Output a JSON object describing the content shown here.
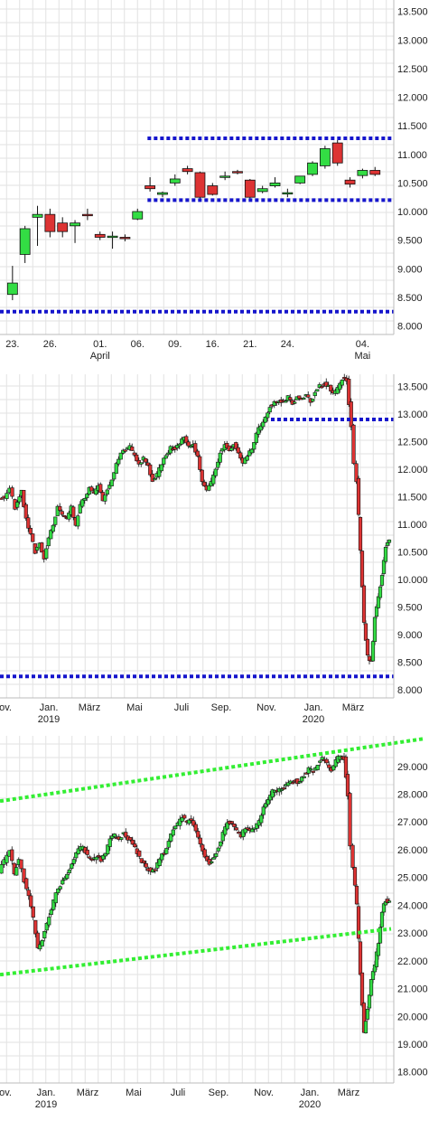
{
  "colors": {
    "up": "#33dd44",
    "down": "#dd3333",
    "blue_line": "#1515cc",
    "green_line": "#33ee33",
    "grid": "#e2e2e2"
  },
  "chart_data": [
    {
      "type": "candlestick",
      "ylim": [
        7850,
        13700
      ],
      "yticks": [
        "13.500",
        "13.000",
        "12.500",
        "12.000",
        "11.500",
        "11.000",
        "10.500",
        "10.000",
        "9.500",
        "9.000",
        "8.500",
        "8.000"
      ],
      "ytick_values": [
        13500,
        13000,
        12500,
        12000,
        11500,
        11000,
        10500,
        10000,
        9500,
        9000,
        8500,
        8000
      ],
      "xticks": [
        {
          "label": "23.",
          "sub": "",
          "i": 0
        },
        {
          "label": "26.",
          "sub": "",
          "i": 3
        },
        {
          "label": "01.",
          "sub": "April",
          "i": 7
        },
        {
          "label": "06.",
          "sub": "",
          "i": 10
        },
        {
          "label": "09.",
          "sub": "",
          "i": 13
        },
        {
          "label": "16.",
          "sub": "",
          "i": 16
        },
        {
          "label": "21.",
          "sub": "",
          "i": 19
        },
        {
          "label": "24.",
          "sub": "",
          "i": 22
        },
        {
          "label": "04.",
          "sub": "Mai",
          "i": 28
        }
      ],
      "x_start": -1,
      "x_end": 30.5,
      "candles": [
        {
          "o": 8550,
          "h": 9050,
          "l": 8450,
          "c": 8750
        },
        {
          "o": 9250,
          "h": 9750,
          "l": 9100,
          "c": 9700
        },
        {
          "o": 9900,
          "h": 10100,
          "l": 9400,
          "c": 9950
        },
        {
          "o": 9950,
          "h": 10050,
          "l": 9550,
          "c": 9650
        },
        {
          "o": 9800,
          "h": 9900,
          "l": 9550,
          "c": 9650
        },
        {
          "o": 9750,
          "h": 9850,
          "l": 9450,
          "c": 9800
        },
        {
          "o": 9950,
          "h": 10050,
          "l": 9850,
          "c": 9930
        },
        {
          "o": 9600,
          "h": 9650,
          "l": 9500,
          "c": 9550
        },
        {
          "o": 9550,
          "h": 9650,
          "l": 9350,
          "c": 9570
        },
        {
          "o": 9550,
          "h": 9600,
          "l": 9480,
          "c": 9530
        },
        {
          "o": 9870,
          "h": 10050,
          "l": 9850,
          "c": 10000
        },
        {
          "o": 10450,
          "h": 10600,
          "l": 10350,
          "c": 10400
        },
        {
          "o": 10300,
          "h": 10350,
          "l": 10250,
          "c": 10330
        },
        {
          "o": 10500,
          "h": 10650,
          "l": 10450,
          "c": 10570
        },
        {
          "o": 10750,
          "h": 10800,
          "l": 10650,
          "c": 10700
        },
        {
          "o": 10680,
          "h": 10700,
          "l": 10200,
          "c": 10250
        },
        {
          "o": 10450,
          "h": 10500,
          "l": 10280,
          "c": 10300
        },
        {
          "o": 10600,
          "h": 10700,
          "l": 10550,
          "c": 10620
        },
        {
          "o": 10700,
          "h": 10730,
          "l": 10650,
          "c": 10680
        },
        {
          "o": 10550,
          "h": 10570,
          "l": 10200,
          "c": 10250
        },
        {
          "o": 10350,
          "h": 10450,
          "l": 10320,
          "c": 10400
        },
        {
          "o": 10450,
          "h": 10600,
          "l": 10420,
          "c": 10500
        },
        {
          "o": 10320,
          "h": 10400,
          "l": 10250,
          "c": 10330
        },
        {
          "o": 10500,
          "h": 10600,
          "l": 10480,
          "c": 10620
        },
        {
          "o": 10650,
          "h": 10880,
          "l": 10620,
          "c": 10850
        },
        {
          "o": 10800,
          "h": 11150,
          "l": 10750,
          "c": 11100
        },
        {
          "o": 11200,
          "h": 11250,
          "l": 10800,
          "c": 10850
        },
        {
          "o": 10550,
          "h": 10600,
          "l": 10420,
          "c": 10480
        },
        {
          "o": 10630,
          "h": 10750,
          "l": 10580,
          "c": 10720
        },
        {
          "o": 10720,
          "h": 10780,
          "l": 10620,
          "c": 10650
        }
      ],
      "hlines": [
        {
          "value": 11280,
          "from": 10.8,
          "to": 30.5,
          "color": "blue"
        },
        {
          "value": 10200,
          "from": 10.8,
          "to": 30.5,
          "color": "blue"
        },
        {
          "value": 8250,
          "from": -1,
          "to": 30.5,
          "color": "blue"
        }
      ]
    },
    {
      "type": "candlestick",
      "ylim": [
        7850,
        13720
      ],
      "yticks": [
        "13.500",
        "13.000",
        "12.500",
        "12.000",
        "11.500",
        "11.000",
        "10.500",
        "10.000",
        "9.500",
        "9.000",
        "8.500",
        "8.000"
      ],
      "ytick_values": [
        13500,
        13000,
        12500,
        12000,
        11500,
        11000,
        10500,
        10000,
        9500,
        9000,
        8500,
        8000
      ],
      "xticks": [
        {
          "label": "ov.",
          "sub": "",
          "px": 6
        },
        {
          "label": "Jan.",
          "sub": "2019",
          "px": 54
        },
        {
          "label": "März",
          "sub": "",
          "px": 99
        },
        {
          "label": "Mai",
          "sub": "",
          "px": 149
        },
        {
          "label": "Juli",
          "sub": "",
          "px": 201
        },
        {
          "label": "Sep.",
          "sub": "",
          "px": 245
        },
        {
          "label": "Nov.",
          "sub": "",
          "px": 295
        },
        {
          "label": "Jan.",
          "sub": "2020",
          "px": 347
        },
        {
          "label": "März",
          "sub": "",
          "px": 391
        }
      ],
      "pts": [
        [
          0,
          11500
        ],
        [
          6,
          11450
        ],
        [
          12,
          11650
        ],
        [
          18,
          11300
        ],
        [
          25,
          11600
        ],
        [
          30,
          11100
        ],
        [
          35,
          10800
        ],
        [
          40,
          10500
        ],
        [
          45,
          10650
        ],
        [
          50,
          10400
        ],
        [
          55,
          10750
        ],
        [
          60,
          11000
        ],
        [
          65,
          11300
        ],
        [
          70,
          11150
        ],
        [
          75,
          11100
        ],
        [
          80,
          11300
        ],
        [
          85,
          11000
        ],
        [
          90,
          11350
        ],
        [
          95,
          11500
        ],
        [
          100,
          11650
        ],
        [
          105,
          11550
        ],
        [
          110,
          11700
        ],
        [
          115,
          11400
        ],
        [
          120,
          11650
        ],
        [
          125,
          11800
        ],
        [
          130,
          12100
        ],
        [
          135,
          12300
        ],
        [
          140,
          12350
        ],
        [
          145,
          12400
        ],
        [
          150,
          12250
        ],
        [
          155,
          12100
        ],
        [
          160,
          12200
        ],
        [
          165,
          12050
        ],
        [
          170,
          11800
        ],
        [
          175,
          11900
        ],
        [
          180,
          12100
        ],
        [
          185,
          12250
        ],
        [
          190,
          12400
        ],
        [
          195,
          12350
        ],
        [
          200,
          12450
        ],
        [
          205,
          12600
        ],
        [
          210,
          12400
        ],
        [
          215,
          12450
        ],
        [
          220,
          12200
        ],
        [
          225,
          11800
        ],
        [
          230,
          11600
        ],
        [
          235,
          11750
        ],
        [
          240,
          12000
        ],
        [
          245,
          12300
        ],
        [
          250,
          12450
        ],
        [
          255,
          12350
        ],
        [
          260,
          12450
        ],
        [
          265,
          12300
        ],
        [
          270,
          12100
        ],
        [
          275,
          12250
        ],
        [
          280,
          12350
        ],
        [
          285,
          12650
        ],
        [
          290,
          12800
        ],
        [
          295,
          12950
        ],
        [
          300,
          13150
        ],
        [
          305,
          13200
        ],
        [
          310,
          13250
        ],
        [
          315,
          13200
        ],
        [
          320,
          13300
        ],
        [
          325,
          13200
        ],
        [
          330,
          13300
        ],
        [
          335,
          13250
        ],
        [
          340,
          13350
        ],
        [
          345,
          13200
        ],
        [
          350,
          13400
        ],
        [
          355,
          13500
        ],
        [
          360,
          13550
        ],
        [
          365,
          13500
        ],
        [
          370,
          13350
        ],
        [
          375,
          13450
        ],
        [
          380,
          13650
        ],
        [
          385,
          13600
        ],
        [
          390,
          12800
        ],
        [
          393,
          12100
        ],
        [
          396,
          11800
        ],
        [
          400,
          10500
        ],
        [
          404,
          9200
        ],
        [
          408,
          8600
        ],
        [
          412,
          8500
        ],
        [
          416,
          9300
        ],
        [
          420,
          9700
        ],
        [
          424,
          10100
        ],
        [
          428,
          10600
        ],
        [
          432,
          10700
        ]
      ],
      "hlines": [
        {
          "value": 12900,
          "fromPx": 300,
          "toPx": 436,
          "color": "blue"
        },
        {
          "value": 8240,
          "fromPx": 0,
          "toPx": 436,
          "color": "blue"
        }
      ]
    },
    {
      "type": "candlestick",
      "ylim": [
        17600,
        30100
      ],
      "yticks": [
        "29.000",
        "28.000",
        "27.000",
        "26.000",
        "25.000",
        "24.000",
        "23.000",
        "22.000",
        "21.000",
        "20.000",
        "19.000",
        "18.000"
      ],
      "ytick_values": [
        29000,
        28000,
        27000,
        26000,
        25000,
        24000,
        23000,
        22000,
        21000,
        20000,
        19000,
        18000
      ],
      "xticks": [
        {
          "label": "ov.",
          "sub": "",
          "px": 6
        },
        {
          "label": "Jan.",
          "sub": "2019",
          "px": 51
        },
        {
          "label": "März",
          "sub": "",
          "px": 97
        },
        {
          "label": "Mai",
          "sub": "",
          "px": 148
        },
        {
          "label": "Juli",
          "sub": "",
          "px": 197
        },
        {
          "label": "Sep.",
          "sub": "",
          "px": 242
        },
        {
          "label": "Nov.",
          "sub": "",
          "px": 292
        },
        {
          "label": "Jan.",
          "sub": "2020",
          "px": 343
        },
        {
          "label": "März",
          "sub": "",
          "px": 386
        }
      ],
      "pts": [
        [
          0,
          25200
        ],
        [
          6,
          25600
        ],
        [
          12,
          26000
        ],
        [
          17,
          25100
        ],
        [
          22,
          25700
        ],
        [
          28,
          24900
        ],
        [
          33,
          24300
        ],
        [
          38,
          23500
        ],
        [
          43,
          22400
        ],
        [
          48,
          22800
        ],
        [
          53,
          23300
        ],
        [
          58,
          23900
        ],
        [
          63,
          24400
        ],
        [
          68,
          24700
        ],
        [
          73,
          25000
        ],
        [
          78,
          25300
        ],
        [
          83,
          25700
        ],
        [
          88,
          26000
        ],
        [
          93,
          26100
        ],
        [
          98,
          25800
        ],
        [
          103,
          25600
        ],
        [
          108,
          25800
        ],
        [
          113,
          25600
        ],
        [
          118,
          25900
        ],
        [
          123,
          26400
        ],
        [
          128,
          26500
        ],
        [
          133,
          26400
        ],
        [
          138,
          26600
        ],
        [
          143,
          26400
        ],
        [
          148,
          26200
        ],
        [
          153,
          25900
        ],
        [
          158,
          25600
        ],
        [
          163,
          25400
        ],
        [
          168,
          25200
        ],
        [
          173,
          25300
        ],
        [
          178,
          25700
        ],
        [
          183,
          25900
        ],
        [
          188,
          26300
        ],
        [
          193,
          26700
        ],
        [
          198,
          26900
        ],
        [
          203,
          27200
        ],
        [
          208,
          27000
        ],
        [
          213,
          27100
        ],
        [
          218,
          26700
        ],
        [
          223,
          26200
        ],
        [
          228,
          25800
        ],
        [
          233,
          25500
        ],
        [
          238,
          25700
        ],
        [
          243,
          26100
        ],
        [
          248,
          26600
        ],
        [
          253,
          27000
        ],
        [
          258,
          26900
        ],
        [
          263,
          26700
        ],
        [
          268,
          26500
        ],
        [
          273,
          26800
        ],
        [
          278,
          26700
        ],
        [
          283,
          26800
        ],
        [
          288,
          27000
        ],
        [
          293,
          27500
        ],
        [
          298,
          27800
        ],
        [
          303,
          28100
        ],
        [
          308,
          28100
        ],
        [
          313,
          28200
        ],
        [
          318,
          28300
        ],
        [
          323,
          28400
        ],
        [
          328,
          28500
        ],
        [
          333,
          28400
        ],
        [
          338,
          28700
        ],
        [
          343,
          28900
        ],
        [
          348,
          28800
        ],
        [
          353,
          29100
        ],
        [
          358,
          29300
        ],
        [
          363,
          29100
        ],
        [
          368,
          28900
        ],
        [
          373,
          29200
        ],
        [
          378,
          29400
        ],
        [
          382,
          29300
        ],
        [
          386,
          28000
        ],
        [
          389,
          26200
        ],
        [
          392,
          25400
        ],
        [
          396,
          24000
        ],
        [
          400,
          21500
        ],
        [
          404,
          19400
        ],
        [
          408,
          20300
        ],
        [
          412,
          21300
        ],
        [
          416,
          21800
        ],
        [
          420,
          22700
        ],
        [
          424,
          23800
        ],
        [
          428,
          24200
        ],
        [
          432,
          24100
        ]
      ],
      "lines": [
        {
          "y1": 27750,
          "y2": 30000,
          "fromPx": 0,
          "toPx": 470,
          "color": "green"
        },
        {
          "y1": 21500,
          "y2": 23150,
          "fromPx": 0,
          "toPx": 433,
          "color": "green"
        }
      ]
    }
  ]
}
